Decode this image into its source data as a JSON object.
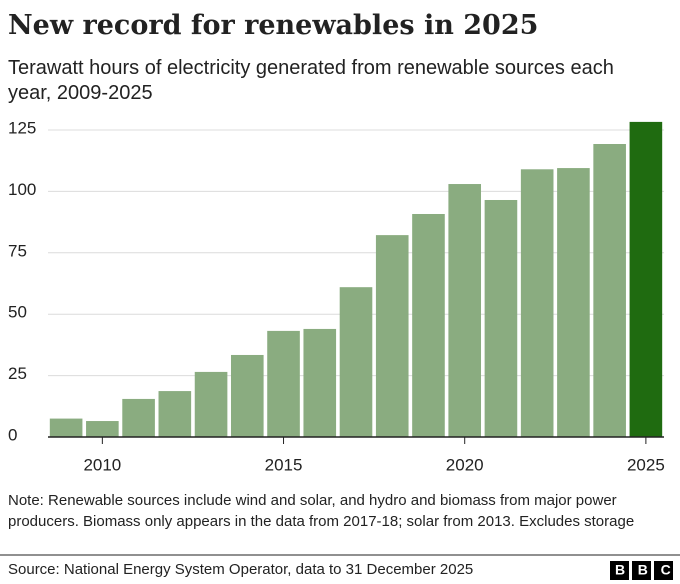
{
  "chart_data": {
    "type": "bar",
    "title": "New record for renewables in 2025",
    "subtitle": "Terawatt hours of electricity generated from renewable sources each year, 2009-2025",
    "x": [
      2009,
      2010,
      2011,
      2012,
      2013,
      2014,
      2015,
      2016,
      2017,
      2018,
      2019,
      2020,
      2021,
      2022,
      2023,
      2024,
      2025
    ],
    "values": [
      7.5,
      6.5,
      15.5,
      18.7,
      26.5,
      33.4,
      43.2,
      44,
      61,
      82.2,
      90.8,
      103,
      96.5,
      109,
      109.5,
      119.3,
      128.3
    ],
    "colors": [
      "#8aac80",
      "#8aac80",
      "#8aac80",
      "#8aac80",
      "#8aac80",
      "#8aac80",
      "#8aac80",
      "#8aac80",
      "#8aac80",
      "#8aac80",
      "#8aac80",
      "#8aac80",
      "#8aac80",
      "#8aac80",
      "#8aac80",
      "#8aac80",
      "#1f6b10"
    ],
    "xlim": [
      2008.5,
      2025.5
    ],
    "xticks": [
      2010,
      2015,
      2020,
      2025
    ],
    "ylim": [
      0,
      125
    ],
    "yticks": [
      0,
      25,
      50,
      75,
      100,
      125
    ],
    "grid": true,
    "note": "Note: Renewable sources include wind and solar, and hydro and biomass from major power producers. Biomass only appears in the data from 2017-18; solar from 2013. Excludes storage",
    "source": "Source: National Energy System Operator, data to 31 December 2025",
    "logo": "BBC"
  }
}
